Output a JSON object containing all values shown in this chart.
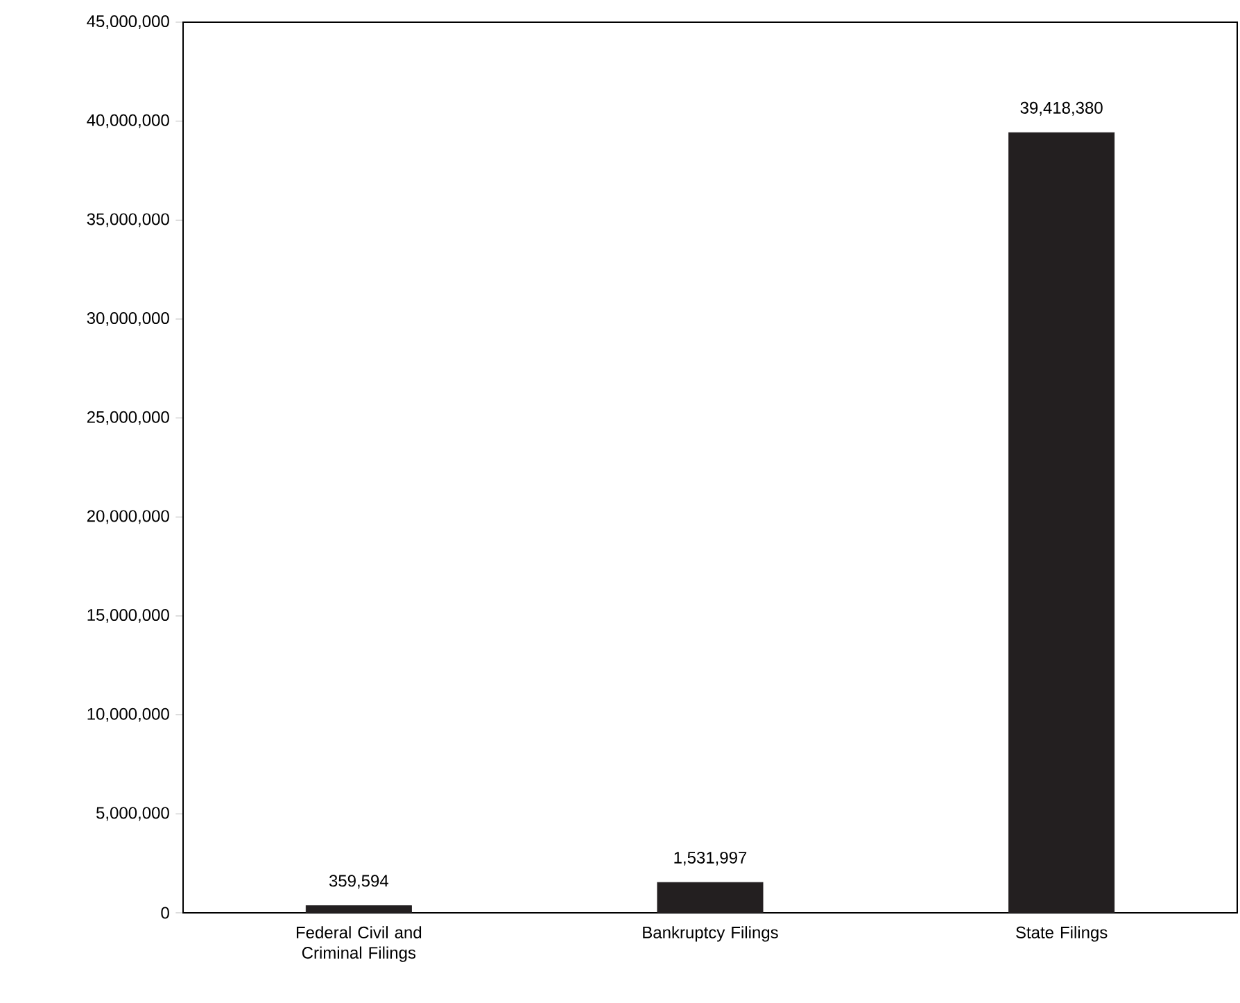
{
  "chart_data": {
    "type": "bar",
    "categories": [
      "Federal Civil and Criminal Filings",
      "Bankruptcy Filings",
      "State Filings"
    ],
    "values": [
      359594,
      1531997,
      39418380
    ],
    "value_labels": [
      "359,594",
      "1,531,997",
      "39,418,380"
    ],
    "color": "#231f20",
    "ylim": [
      0,
      45000000
    ],
    "yticks": [
      {
        "value": 0,
        "label": "0"
      },
      {
        "value": 5000000,
        "label": "5,000,000"
      },
      {
        "value": 10000000,
        "label": "10,000,000"
      },
      {
        "value": 15000000,
        "label": "15,000,000"
      },
      {
        "value": 20000000,
        "label": "20,000,000"
      },
      {
        "value": 25000000,
        "label": "25,000,000"
      },
      {
        "value": 30000000,
        "label": "30,000,000"
      },
      {
        "value": 35000000,
        "label": "35,000,000"
      },
      {
        "value": 40000000,
        "label": "40,000,000"
      },
      {
        "value": 45000000,
        "label": "45,000,000"
      }
    ],
    "grid": false
  }
}
